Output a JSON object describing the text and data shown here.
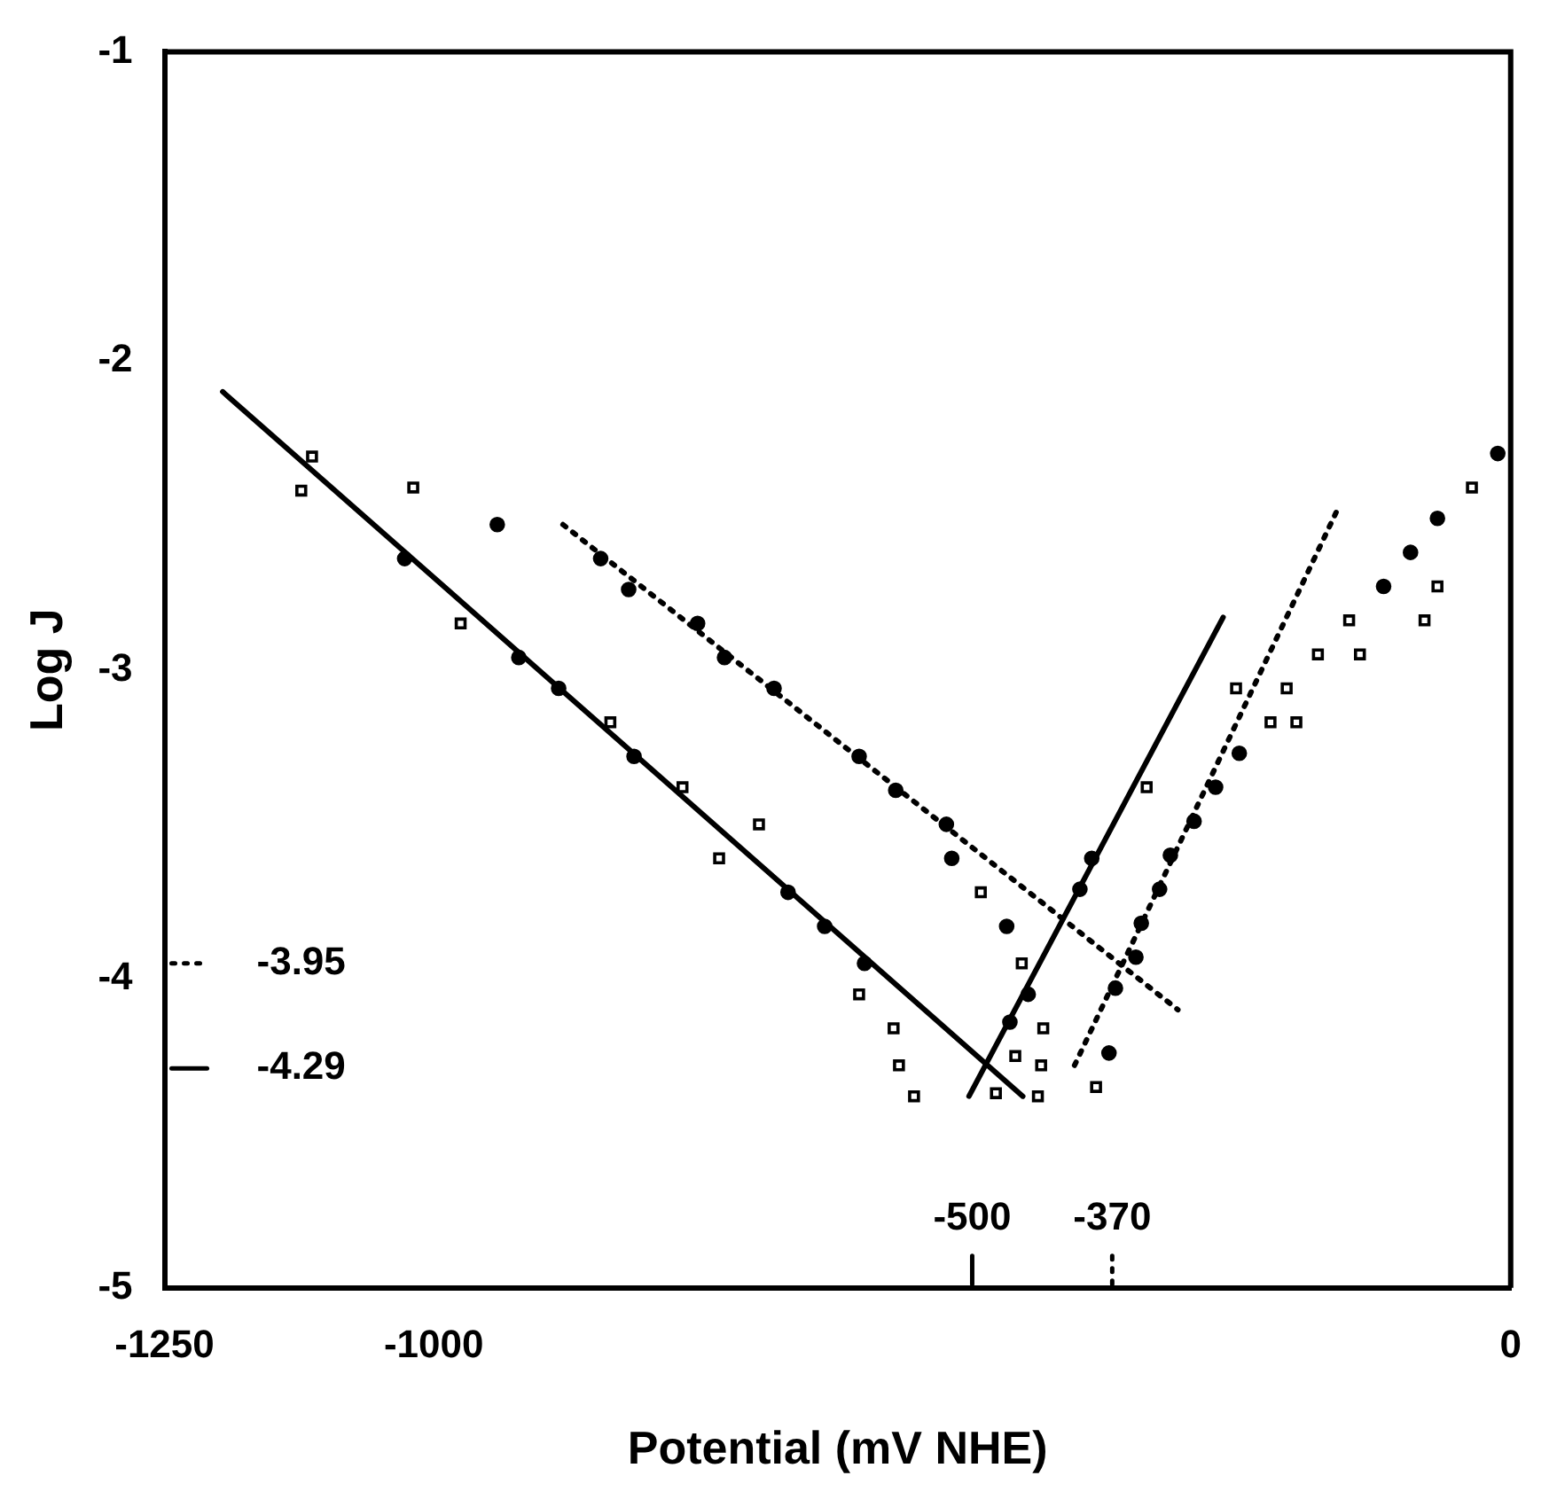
{
  "chart_data": {
    "type": "scatter",
    "xlabel": "Potential (mV NHE)",
    "ylabel": "Log J",
    "xlim": [
      -1250,
      0
    ],
    "xticks": [
      -1250,
      -1000,
      0
    ],
    "ylim": [
      -5,
      -1
    ],
    "yticks": [
      -5,
      -4,
      -3,
      -2,
      -1
    ],
    "grid": false,
    "legend": false,
    "series": [
      {
        "type": "scatter",
        "marker": "circle",
        "color": "#000000",
        "x": [
          -941,
          -1027,
          -921,
          -884,
          -814,
          -671,
          -637,
          -600,
          -845,
          -819,
          -755,
          -730,
          -684,
          -605,
          -571,
          -524,
          -519,
          -468,
          -465,
          -448,
          -400,
          -389,
          -373,
          -367,
          -348,
          -343,
          -326,
          -316,
          -294,
          -274,
          -252,
          -93,
          -68,
          -12,
          -118
        ],
        "values": [
          -2.53,
          -2.64,
          -2.96,
          -3.06,
          -3.28,
          -3.72,
          -3.83,
          -3.95,
          -2.64,
          -2.74,
          -2.85,
          -2.96,
          -3.06,
          -3.28,
          -3.39,
          -3.5,
          -3.61,
          -3.83,
          -4.14,
          -4.05,
          -3.71,
          -3.61,
          -4.24,
          -4.03,
          -3.93,
          -3.82,
          -3.71,
          -3.6,
          -3.49,
          -3.38,
          -3.27,
          -2.62,
          -2.51,
          -2.3,
          -2.73
        ]
      },
      {
        "type": "scatter",
        "marker": "square",
        "color": "#000000",
        "x": [
          -1113,
          -1123,
          -1019,
          -975,
          -836,
          -769,
          -735,
          -698,
          -605,
          -492,
          -454,
          -573,
          -568,
          -554,
          -460,
          -478,
          -434,
          -436,
          -439,
          -385,
          -338,
          -255,
          -223,
          -199,
          -208,
          -179,
          -150,
          -140,
          -36,
          -68,
          -80
        ],
        "values": [
          -2.31,
          -2.42,
          -2.41,
          -2.85,
          -3.17,
          -3.38,
          -3.61,
          -3.5,
          -4.05,
          -3.72,
          -3.95,
          -4.16,
          -4.28,
          -4.38,
          -4.25,
          -4.37,
          -4.16,
          -4.28,
          -4.38,
          -4.35,
          -3.38,
          -3.06,
          -3.17,
          -3.17,
          -3.06,
          -2.95,
          -2.84,
          -2.95,
          -2.41,
          -2.73,
          -2.84
        ]
      },
      {
        "type": "line",
        "line_style": "solid",
        "color": "#000000",
        "x": [
          -1196,
          -453
        ],
        "values": [
          -2.1,
          -4.38
        ]
      },
      {
        "type": "line",
        "line_style": "solid",
        "color": "#000000",
        "x": [
          -503,
          -267
        ],
        "values": [
          -4.38,
          -2.83
        ]
      },
      {
        "type": "line",
        "line_style": "dotted",
        "color": "#000000",
        "x": [
          -880,
          -309
        ],
        "values": [
          -2.53,
          -4.1
        ]
      },
      {
        "type": "line",
        "line_style": "dotted",
        "color": "#000000",
        "x": [
          -405,
          -162
        ],
        "values": [
          -4.28,
          -2.49
        ]
      }
    ],
    "ref_lines": [
      {
        "axis": "y",
        "value": -3.95,
        "label": "-3.95",
        "line_style": "dotted"
      },
      {
        "axis": "y",
        "value": -4.29,
        "label": "-4.29",
        "line_style": "solid"
      },
      {
        "axis": "x",
        "value": -500,
        "label": "-500",
        "line_style": "solid"
      },
      {
        "axis": "x",
        "value": -370,
        "label": "-370",
        "line_style": "dotted"
      }
    ]
  }
}
